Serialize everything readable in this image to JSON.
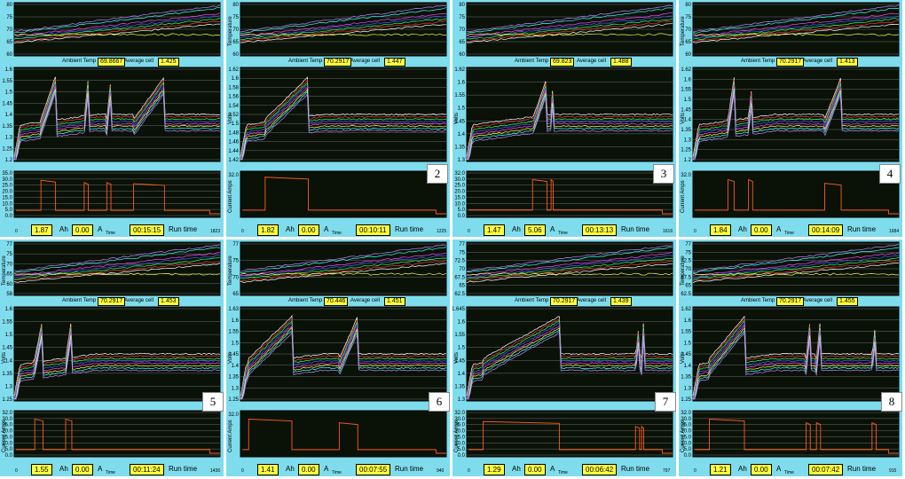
{
  "panels": [
    {
      "ambient_label": "Ambient Temp",
      "ambient": "69.8667",
      "avg_label": "Average cell",
      "avg": "1.425",
      "ah": "1.87",
      "ah_unit": "Ah",
      "amps": "0.00",
      "a_unit": "A",
      "time_small": "Time",
      "runtime": "00:15:15",
      "run_label": "Run time",
      "end_tick": "1823",
      "number": "",
      "t_ticks": [
        "80",
        "75",
        "70",
        "65",
        "60"
      ],
      "v_ticks": [
        "1.6",
        "1.55",
        "1.5",
        "1.45",
        "1.4",
        "1.35",
        "1.3",
        "1.25",
        "1.2"
      ],
      "c_ticks": [
        "35.0",
        "30.0",
        "25.0",
        "20.0",
        "15.0",
        "10.0",
        "5.0",
        "0.0"
      ],
      "temp_label": "",
      "volt_label": "",
      "cur_label": ""
    },
    {
      "ambient_label": "Ambient Temp",
      "ambient": "70.2917",
      "avg_label": "Average cell",
      "avg": "1.447",
      "ah": "1.82",
      "ah_unit": "Ah",
      "amps": "0.00",
      "a_unit": "A",
      "time_small": "Time",
      "runtime": "00:10:11",
      "run_label": "Run time",
      "end_tick": "1225",
      "number": "2",
      "t_ticks": [
        "80",
        "75",
        "70",
        "65",
        "60"
      ],
      "v_ticks": [
        "1.62",
        "1.6",
        "1.58",
        "1.56",
        "1.54",
        "1.52",
        "1.5",
        "1.48",
        "1.46",
        "1.44",
        "1.42"
      ],
      "c_ticks": [
        "32.0"
      ],
      "temp_label": "Temperature",
      "volt_label": "Volts",
      "cur_label": "Current Amps"
    },
    {
      "ambient_label": "Ambient Temp",
      "ambient": "69.823",
      "avg_label": "Average cell",
      "avg": "1.488",
      "ah": "1.47",
      "ah_unit": "Ah",
      "amps": "5.06",
      "a_unit": "A",
      "time_small": "Time",
      "runtime": "00:13:13",
      "run_label": "Run time",
      "end_tick": "1616",
      "number": "3",
      "t_ticks": [
        "80",
        "75",
        "70",
        "65",
        "60"
      ],
      "v_ticks": [
        "1.62",
        "1.6",
        "1.55",
        "1.5",
        "1.45",
        "1.4",
        "1.35",
        "1.3"
      ],
      "c_ticks": [
        "32.0",
        "30.0",
        "25.0",
        "20.0",
        "15.0",
        "10.0",
        "5.0",
        "0.0"
      ],
      "temp_label": "",
      "volt_label": "Volts",
      "cur_label": ""
    },
    {
      "ambient_label": "Ambient Temp",
      "ambient": "70.2917",
      "avg_label": "Average cell",
      "avg": "1.413",
      "ah": "1.84",
      "ah_unit": "Ah",
      "amps": "0.00",
      "a_unit": "A",
      "time_small": "Time",
      "runtime": "00:14:09",
      "run_label": "Run time",
      "end_tick": "1684",
      "number": "4",
      "t_ticks": [
        "80",
        "75",
        "70",
        "65",
        "60"
      ],
      "v_ticks": [
        "1.62",
        "1.6",
        "1.55",
        "1.5",
        "1.45",
        "1.4",
        "1.35",
        "1.3",
        "1.25",
        "1.2"
      ],
      "c_ticks": [
        "32.0"
      ],
      "temp_label": "Temperature",
      "volt_label": "Volts",
      "cur_label": "Current Amps"
    },
    {
      "ambient_label": "Ambient Temp",
      "ambient": "70.2917",
      "avg_label": "Average cell",
      "avg": "1.453",
      "ah": "1.55",
      "ah_unit": "Ah",
      "amps": "0.00",
      "a_unit": "A",
      "time_small": "Time",
      "runtime": "00:11:24",
      "run_label": "Run time",
      "end_tick": "1436",
      "number": "5",
      "t_ticks": [
        "77",
        "75",
        "70",
        "65",
        "60",
        "58"
      ],
      "v_ticks": [
        "1.6",
        "1.55",
        "1.5",
        "1.45",
        "1.4",
        "1.35",
        "1.3",
        "1.25"
      ],
      "c_ticks": [
        "32.0",
        "30.0",
        "25.0",
        "20.0",
        "15.0",
        "10.0",
        "5.0",
        "0.0"
      ],
      "temp_label": "Temperature",
      "volt_label": "Volts",
      "cur_label": "Current Amps"
    },
    {
      "ambient_label": "Ambient Temp",
      "ambient": "70.446",
      "avg_label": "Average cell",
      "avg": "1.451",
      "ah": "1.41",
      "ah_unit": "Ah",
      "amps": "0.00",
      "a_unit": "A",
      "time_small": "Time",
      "runtime": "00:07:55",
      "run_label": "Run time",
      "end_tick": "940",
      "number": "6",
      "t_ticks": [
        "77",
        "75",
        "70",
        "65"
      ],
      "v_ticks": [
        "1.63",
        "1.6",
        "1.55",
        "1.5",
        "1.45",
        "1.4",
        "1.35",
        "1.3",
        "1.25"
      ],
      "c_ticks": [
        "32.0"
      ],
      "temp_label": "Temperature",
      "volt_label": "Volts",
      "cur_label": "Current Amps"
    },
    {
      "ambient_label": "Ambient Temp",
      "ambient": "70.2917",
      "avg_label": "Average cell",
      "avg": "1.439",
      "ah": "1.29",
      "ah_unit": "Ah",
      "amps": "0.00",
      "a_unit": "A",
      "time_small": "Time",
      "runtime": "00:06:42",
      "run_label": "Run time",
      "end_tick": "797",
      "number": "7",
      "t_ticks": [
        "77",
        "75",
        "72.5",
        "70",
        "67.5",
        "65",
        "62.5"
      ],
      "v_ticks": [
        "1.645",
        "1.6",
        "1.55",
        "1.5",
        "1.45",
        "1.4",
        "1.35",
        "1.3"
      ],
      "c_ticks": [
        "32.0",
        "30.0",
        "25.0",
        "20.0",
        "15.0",
        "10.0",
        "5.0",
        "0.0"
      ],
      "temp_label": "",
      "volt_label": "Volts",
      "cur_label": "Current Amps"
    },
    {
      "ambient_label": "Ambient Temp",
      "ambient": "70.2917",
      "avg_label": "Average cell",
      "avg": "1.455",
      "ah": "1.21",
      "ah_unit": "Ah",
      "amps": "0.00",
      "a_unit": "A",
      "time_small": "Time",
      "runtime": "00:07:42",
      "run_label": "Run time",
      "end_tick": "915",
      "number": "8",
      "t_ticks": [
        "77",
        "75",
        "72.5",
        "70",
        "67.5",
        "65",
        "62.5"
      ],
      "v_ticks": [
        "1.62",
        "1.6",
        "1.55",
        "1.5",
        "1.45",
        "1.4",
        "1.35",
        "1.3",
        "1.25"
      ],
      "c_ticks": [
        "32.0",
        "30.0",
        "25.0",
        "20.0",
        "15.0",
        "10.0",
        "5.0",
        "0.0"
      ],
      "temp_label": "Temperature",
      "volt_label": "Volts",
      "cur_label": "Current Amps"
    }
  ],
  "colors": {
    "plot_bg": "#0a1208",
    "grid": "#6b6b6b",
    "current": "#ff5a1a",
    "panel": "#7fdcec",
    "field": "#ffff3c"
  },
  "series_colors": [
    "#ffffff",
    "#ff3030",
    "#30ff60",
    "#4060ff",
    "#ff40ff",
    "#ffff40",
    "#40ffff",
    "#c080ff"
  ],
  "chart_data": [
    {
      "type": "line",
      "panel": 1,
      "runtime": "00:15:15",
      "ah": 1.87,
      "ambient_temp": 69.8667,
      "average_cell": 1.425,
      "ylim_temp": [
        60,
        80
      ],
      "ylim_volts": [
        1.2,
        1.6
      ],
      "ylim_current": [
        0,
        35
      ],
      "current_pulses": [
        [
          0.13,
          0.2,
          30
        ],
        [
          0.34,
          0.36,
          28
        ],
        [
          0.45,
          0.47,
          28
        ],
        [
          0.58,
          0.73,
          27
        ]
      ],
      "base_current": 3
    },
    {
      "type": "line",
      "panel": 2,
      "runtime": "00:10:11",
      "ah": 1.82,
      "ambient_temp": 70.2917,
      "average_cell": 1.447,
      "ylim_temp": [
        60,
        80
      ],
      "ylim_volts": [
        1.42,
        1.62
      ],
      "ylim_current": [
        0,
        32
      ],
      "current_pulses": [
        [
          0.12,
          0.33,
          30
        ]
      ],
      "base_current": 3
    },
    {
      "type": "line",
      "panel": 3,
      "runtime": "00:13:13",
      "ah": 1.47,
      "ambient_temp": 69.823,
      "average_cell": 1.488,
      "ylim_temp": [
        60,
        80
      ],
      "ylim_volts": [
        1.3,
        1.62
      ],
      "ylim_current": [
        0,
        32
      ],
      "current_pulses": [
        [
          0.32,
          0.39,
          28
        ],
        [
          0.41,
          0.42,
          28
        ]
      ],
      "base_current": 3
    },
    {
      "type": "line",
      "panel": 4,
      "runtime": "00:14:09",
      "ah": 1.84,
      "ambient_temp": 70.2917,
      "average_cell": 1.413,
      "ylim_temp": [
        60,
        80
      ],
      "ylim_volts": [
        1.2,
        1.62
      ],
      "ylim_current": [
        0,
        32
      ],
      "current_pulses": [
        [
          0.17,
          0.2,
          28
        ],
        [
          0.27,
          0.29,
          28
        ],
        [
          0.64,
          0.72,
          25
        ]
      ],
      "base_current": 3
    },
    {
      "type": "line",
      "panel": 5,
      "runtime": "00:11:24",
      "ah": 1.55,
      "ambient_temp": 70.2917,
      "average_cell": 1.453,
      "ylim_temp": [
        58,
        77
      ],
      "ylim_volts": [
        1.25,
        1.6
      ],
      "ylim_current": [
        0,
        32
      ],
      "current_pulses": [
        [
          0.1,
          0.14,
          28
        ],
        [
          0.25,
          0.28,
          28
        ]
      ],
      "base_current": 3
    },
    {
      "type": "line",
      "panel": 6,
      "runtime": "00:07:55",
      "ah": 1.41,
      "ambient_temp": 70.446,
      "average_cell": 1.451,
      "ylim_temp": [
        65,
        77
      ],
      "ylim_volts": [
        1.25,
        1.63
      ],
      "ylim_current": [
        0,
        32
      ],
      "current_pulses": [
        [
          0.04,
          0.25,
          28
        ],
        [
          0.48,
          0.57,
          25
        ]
      ],
      "base_current": 3
    },
    {
      "type": "line",
      "panel": 7,
      "runtime": "00:06:42",
      "ah": 1.29,
      "ambient_temp": 70.2917,
      "average_cell": 1.439,
      "ylim_temp": [
        62.5,
        77
      ],
      "ylim_volts": [
        1.3,
        1.645
      ],
      "ylim_current": [
        0,
        32
      ],
      "current_pulses": [
        [
          0.08,
          0.45,
          26
        ],
        [
          0.82,
          0.84,
          22
        ],
        [
          0.85,
          0.86,
          22
        ]
      ],
      "base_current": 3
    },
    {
      "type": "line",
      "panel": 8,
      "runtime": "00:07:42",
      "ah": 1.21,
      "ambient_temp": 70.2917,
      "average_cell": 1.455,
      "ylim_temp": [
        62.5,
        77
      ],
      "ylim_volts": [
        1.25,
        1.62
      ],
      "ylim_current": [
        0,
        32
      ],
      "current_pulses": [
        [
          0.08,
          0.25,
          28
        ],
        [
          0.55,
          0.57,
          25
        ],
        [
          0.6,
          0.62,
          25
        ],
        [
          0.87,
          0.89,
          25
        ]
      ],
      "base_current": 3
    }
  ]
}
